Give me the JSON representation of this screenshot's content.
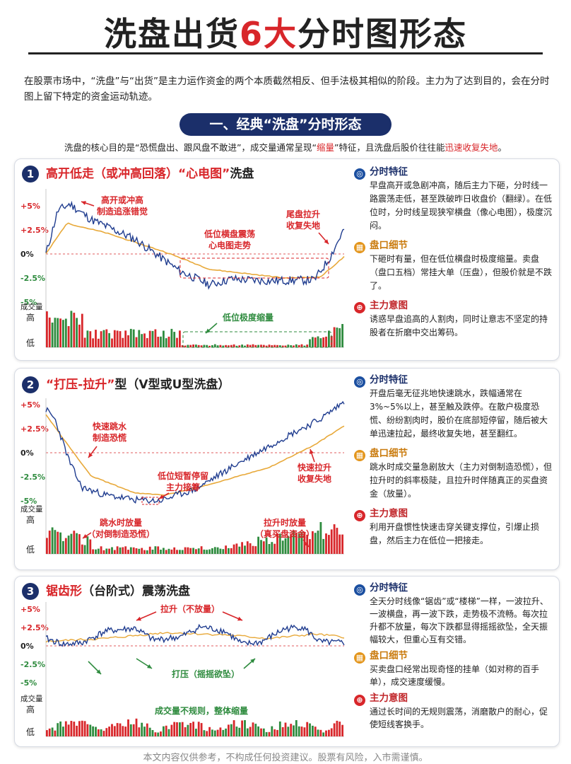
{
  "title": {
    "prefix": "洗盘出货",
    "highlight": "6大",
    "suffix": "分时图形态"
  },
  "intro": "在股票市场中，“洗盘”与“出货”是主力运作资金的两个本质截然相反、但手法极其相似的阶段。主力为了达到目的，会在分时图上留下特定的资金运动轨迹。",
  "section": {
    "banner": "一、经典“洗盘”分时形态",
    "sub_a": "洗盘的核心目的是“恐慌盘出、跟风盘不敢进”，成交量通常呈现“",
    "sub_b": "缩量",
    "sub_c": "”特征，且洗盘后股价往往能",
    "sub_d": "迅速收复失地",
    "sub_e": "。"
  },
  "axis": {
    "y_labels": [
      "+5%",
      "+2.5%",
      "0%",
      "-2.5%",
      "-5%"
    ],
    "vol_title": "成交量",
    "vol_high": "高",
    "vol_low": "低"
  },
  "cards": [
    {
      "num": "1",
      "head_a": "高开低走（或冲高回落）",
      "head_b": "“心电图”",
      "head_c": "洗盘",
      "ann1": "高开或冲高",
      "ann2": "制造追涨错觉",
      "ann3": "低位横盘震荡",
      "ann4": "心电图走势",
      "ann5": "尾盘拉升",
      "ann6": "收复失地",
      "ann7": "低位极度缩量",
      "side": [
        {
          "h": "分时特征",
          "t": "早盘高开或急剧冲高，随后主力下砸，分时线一路震荡走低，甚至跌破昨日收盘价（翻绿）。在低位时，分时线呈现狭窄横盘（像心电图），极度沉闷。"
        },
        {
          "h": "盘口细节",
          "t": "下砸时有量，但在低位横盘时极度缩量。卖盘（盘口五档）常挂大单（压盘），但股价就是不跌了。"
        },
        {
          "h": "主力意图",
          "t": "诱惑早盘追高的人割肉，同时让意志不坚定的持股者在折磨中交出筹码。"
        }
      ]
    },
    {
      "num": "2",
      "head_a": "“打压-拉升”",
      "head_b": "型（V型或U型洗盘）",
      "ann1": "快速跳水",
      "ann2": "制造恐慌",
      "ann3": "低位短暂停留",
      "ann4": "主力接筹",
      "ann5": "快速拉升",
      "ann6": "收复失地",
      "ann7": "跳水时放量",
      "ann8": "（对倒制造恐慌）",
      "ann9": "拉升时放量",
      "ann10": "（真买盘资金）",
      "side": [
        {
          "h": "分时特征",
          "t": "开盘后毫无征兆地快速跳水，跌幅通常在3%~5%以上，甚至触及跌停。在散户极度恐慌、纷纷割肉时，股价在底部短停留，随后被大单迅速拉起，最终收复失地，甚至翻红。"
        },
        {
          "h": "盘口细节",
          "t": "跳水时成交量急剧放大（主力对倒制造恐慌），但拉升时的斜率极陡，且拉升时伴随真正的买盘资金（放量）。"
        },
        {
          "h": "主力意图",
          "t": "利用开盘惯性快速击穿关键支撑位，引爆止损盘，然后主力在低位一把接走。"
        }
      ]
    },
    {
      "num": "3",
      "head_a": "锯齿形",
      "head_b": "（台阶式）震荡洗盘",
      "ann1": "拉升（不放量）",
      "ann2": "打压（摇摇欲坠）",
      "ann3": "成交量不规则，整体缩量",
      "side": [
        {
          "h": "分时特征",
          "t": "全天分时线像“锯齿”或“楼梯”一样，一波拉升、一波横盘，再一波下跌，走势极不流畅。每次拉升都不放量，每次下跌都显得摇摇欲坠，全天振幅较大，但重心互有交错。"
        },
        {
          "h": "盘口细节",
          "t": "买卖盘口经常出现奇怪的挂单（如对称的百手单），成交速度缓慢。"
        },
        {
          "h": "主力意图",
          "t": "通过长时间的无规则震荡，消磨散户的耐心，促使短线客换手。"
        }
      ]
    }
  ],
  "footer": "本文内容仅供参考，不构成任何投资建议。股票有风险，入市需谨慎。",
  "colors": {
    "navy": "#1b2f6a",
    "red": "#d8262a",
    "price": "#1f3c8f",
    "avg": "#e8a93a",
    "vol_red": "#d8262a",
    "vol_green": "#2e8b3e"
  },
  "icons": [
    "target-icon",
    "grid-icon",
    "crosshair-icon"
  ]
}
